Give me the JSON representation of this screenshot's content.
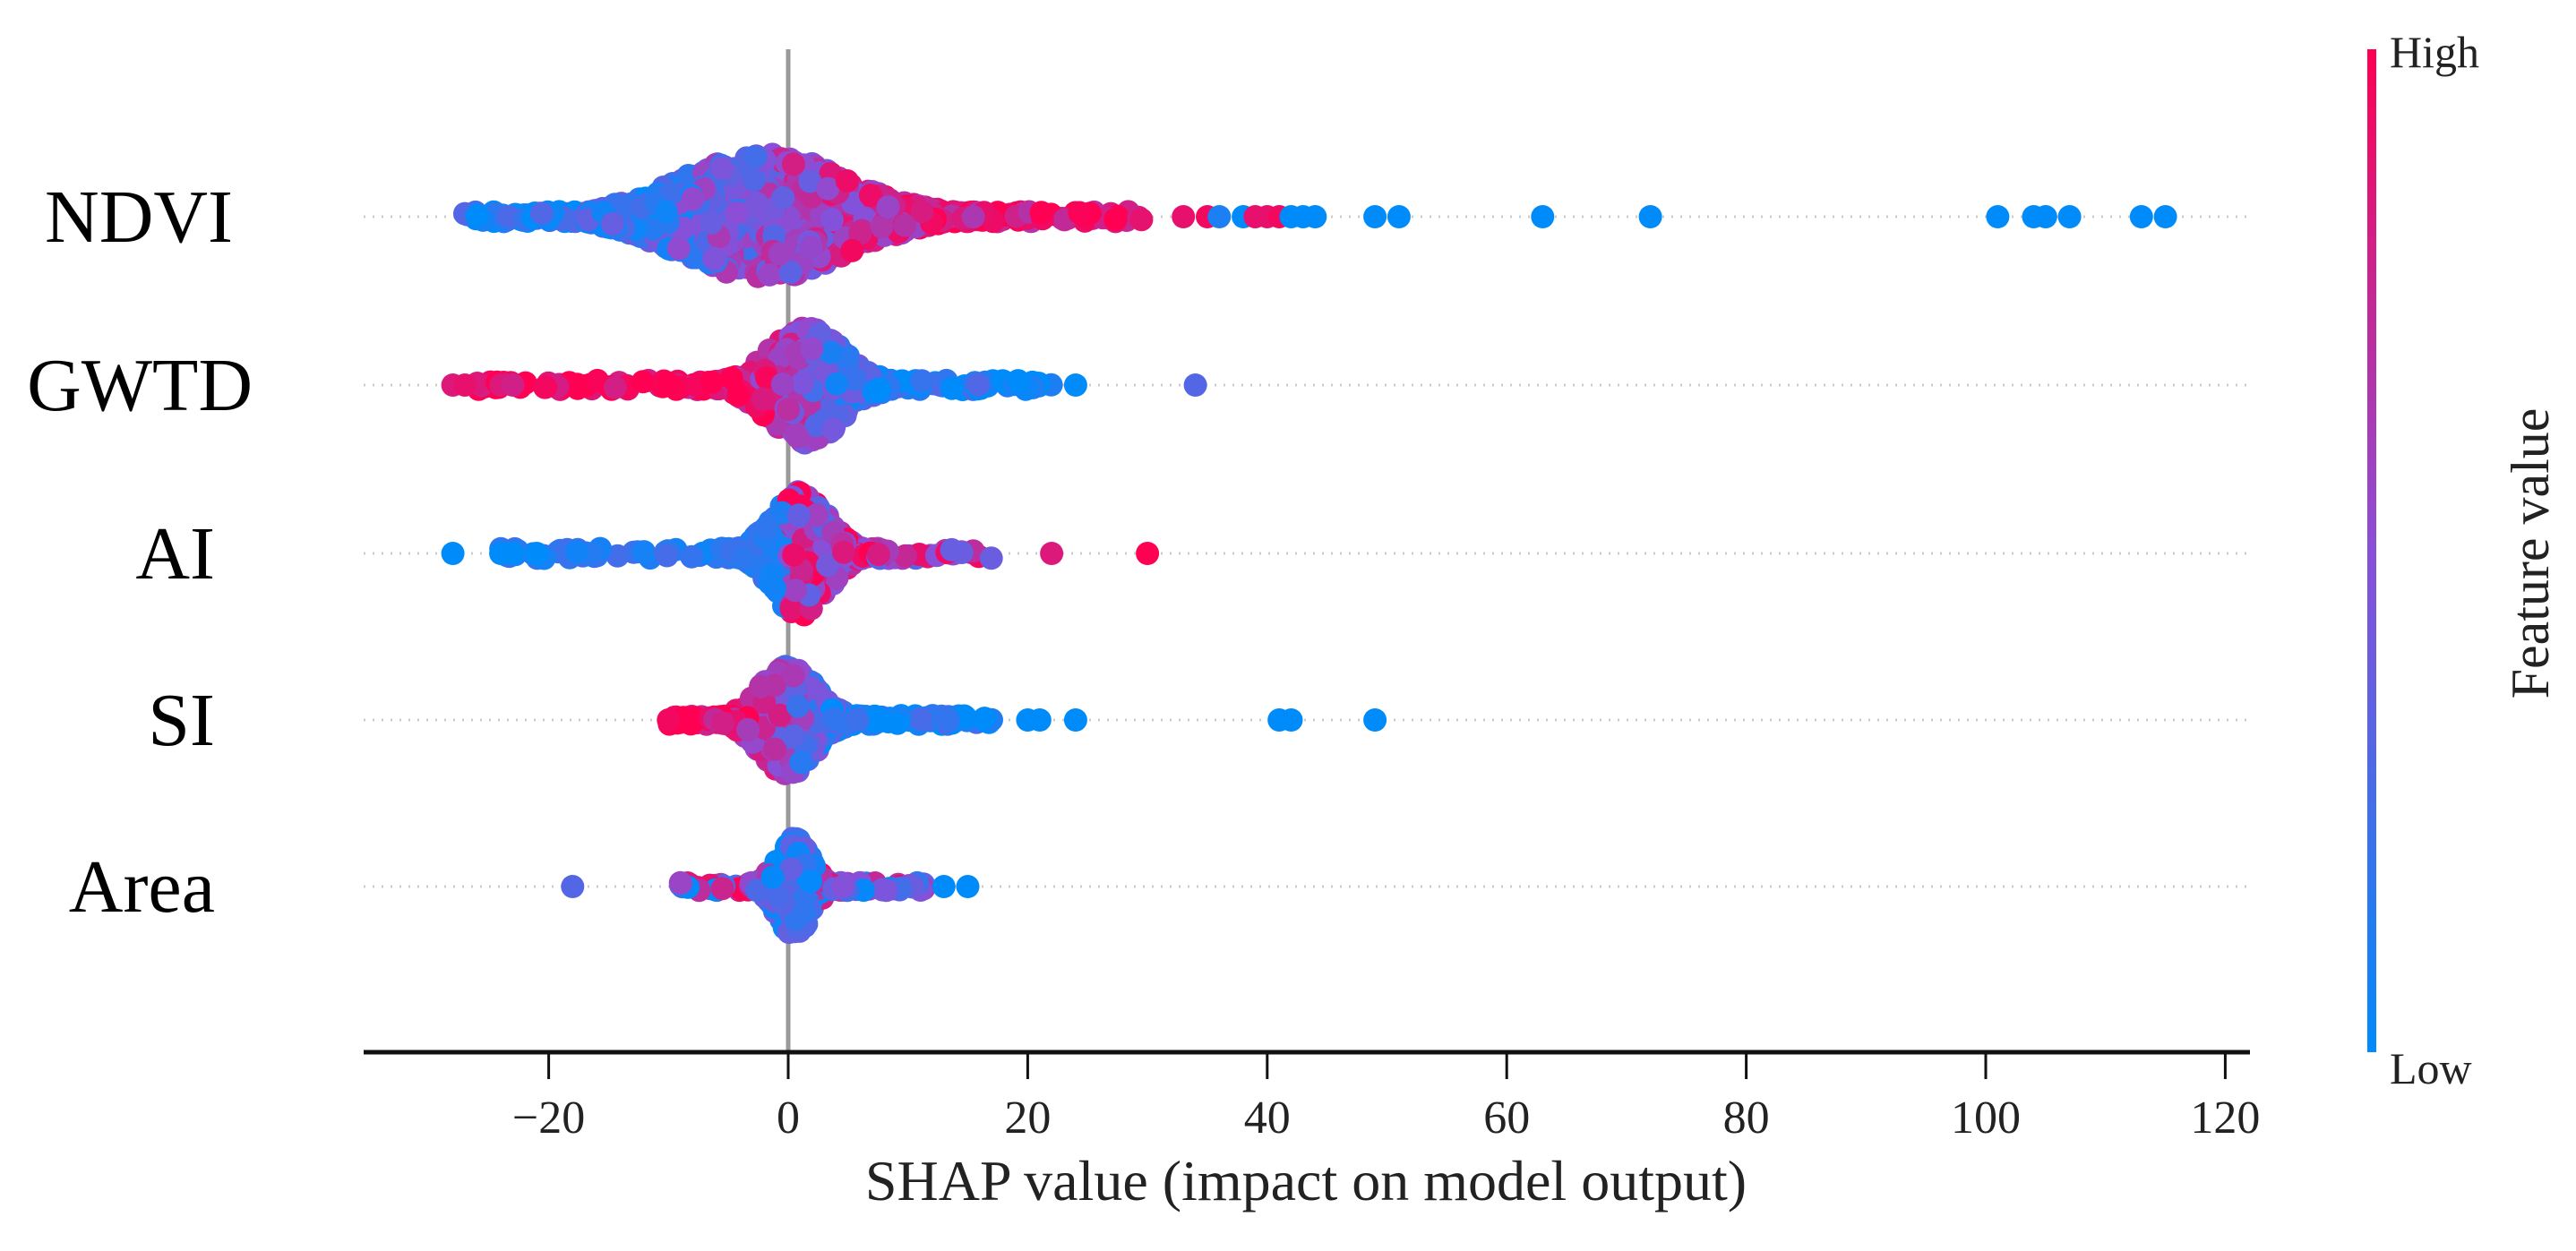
{
  "chart_data": {
    "type": "scatter",
    "subtype": "shap-beeswarm",
    "xlabel": "SHAP value (impact on model output)",
    "ylabel": "",
    "xlim": [
      -35,
      123
    ],
    "xticks": [
      -20,
      0,
      20,
      40,
      60,
      80,
      100,
      120
    ],
    "tick_labels": [
      "−20",
      "0",
      "20",
      "40",
      "60",
      "80",
      "100",
      "120"
    ],
    "grid": false,
    "colorbar": {
      "title": "Feature value",
      "high_label": "High",
      "low_label": "Low",
      "low_color": "#008bfb",
      "mid_color": "#8a4fd8",
      "high_color": "#ff0052"
    },
    "features": [
      {
        "name": "NDVI",
        "core_range": [
          -15,
          15
        ],
        "spread": 9,
        "center": -2,
        "trend": "high_positive",
        "n": 900,
        "tail_range": [
          -27,
          30
        ],
        "outliers": [
          [
            33,
            0.9
          ],
          [
            35,
            0.95
          ],
          [
            36,
            0.1
          ],
          [
            38,
            0.0
          ],
          [
            39,
            0.9
          ],
          [
            40,
            0.9
          ],
          [
            41,
            0.95
          ],
          [
            42,
            0.0
          ],
          [
            43,
            0.0
          ],
          [
            44,
            0.0
          ],
          [
            49,
            0.0
          ],
          [
            51,
            0.0
          ],
          [
            63,
            0.0
          ],
          [
            72,
            0.0
          ],
          [
            101,
            0.0
          ],
          [
            104,
            0.0
          ],
          [
            105,
            0.0
          ],
          [
            107,
            0.0
          ],
          [
            113,
            0.0
          ],
          [
            115,
            0.0
          ]
        ]
      },
      {
        "name": "GWTD",
        "core_range": [
          -10,
          8
        ],
        "spread": 4,
        "center": 1.5,
        "trend": "high_negative",
        "n": 600,
        "tail_range": [
          -26,
          22
        ],
        "outliers": [
          [
            -28,
            0.85
          ],
          [
            -27,
            0.9
          ],
          [
            -24,
            0.85
          ],
          [
            -23,
            0.8
          ],
          [
            24,
            0.0
          ],
          [
            34,
            0.3
          ]
        ]
      },
      {
        "name": "AI",
        "core_range": [
          -6,
          6
        ],
        "spread": 3,
        "center": 1,
        "trend": "low_negative",
        "n": 550,
        "tail_range": [
          -24,
          17
        ],
        "outliers": [
          [
            -28,
            0.0
          ],
          [
            -24,
            0.0
          ],
          [
            -23,
            0.0
          ],
          [
            -21,
            0.0
          ],
          [
            22,
            0.85
          ],
          [
            30,
            1.0
          ]
        ]
      },
      {
        "name": "SI",
        "core_range": [
          -8,
          6
        ],
        "spread": 3,
        "center": 0,
        "trend": "high_negative",
        "n": 500,
        "tail_range": [
          -10,
          17
        ],
        "outliers": [
          [
            -10,
            0.95
          ],
          [
            20,
            0.0
          ],
          [
            21,
            0.0
          ],
          [
            24,
            0.0
          ],
          [
            41,
            0.0
          ],
          [
            42,
            0.0
          ],
          [
            49,
            0.0
          ]
        ]
      },
      {
        "name": "Area",
        "core_range": [
          -4,
          4
        ],
        "spread": 1.8,
        "center": 0.5,
        "trend": "mixed",
        "n": 450,
        "tail_range": [
          -9,
          12
        ],
        "outliers": [
          [
            -18,
            0.3
          ],
          [
            13,
            0.0
          ],
          [
            15,
            0.0
          ]
        ]
      }
    ]
  }
}
